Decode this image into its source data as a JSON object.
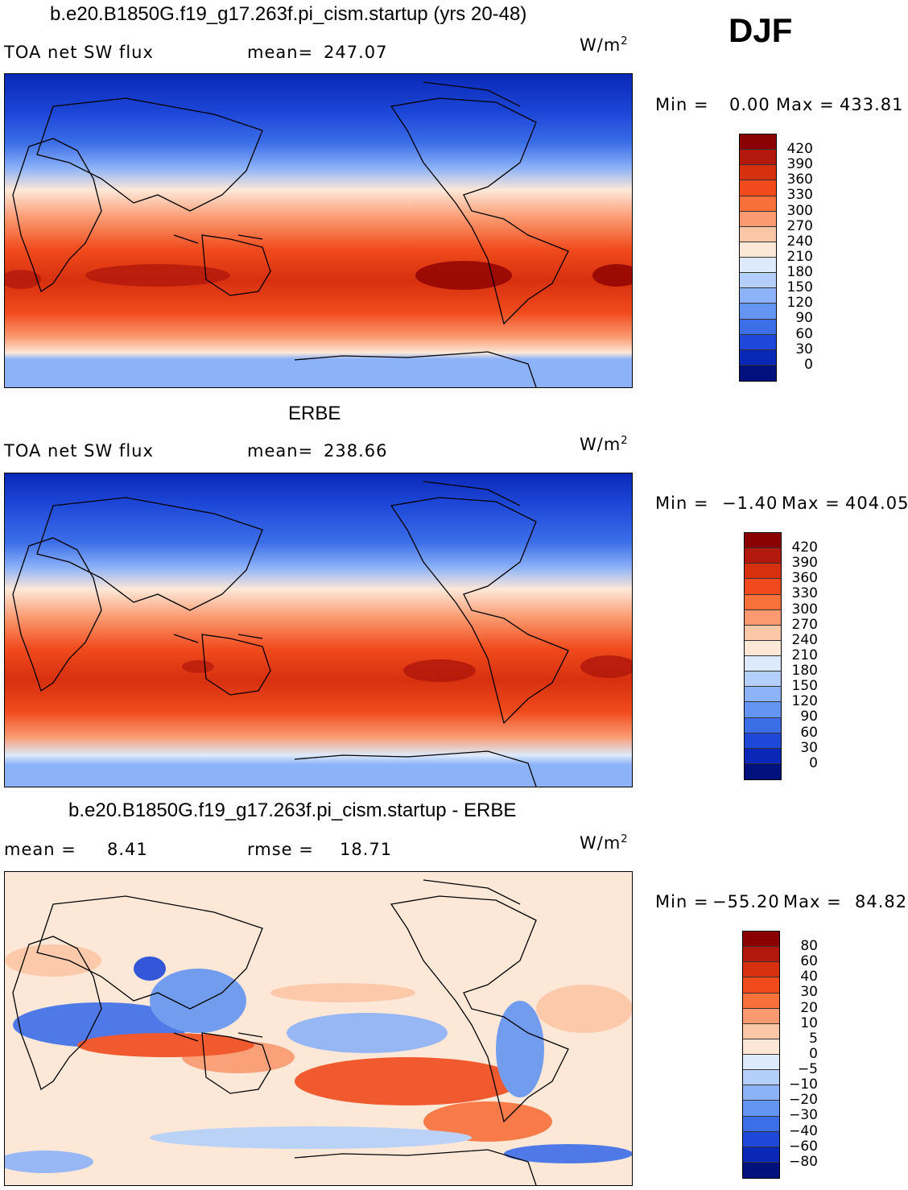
{
  "season": "DJF",
  "units_main": "W/m",
  "units_sup": "2",
  "panels": [
    {
      "title": "b.e20.B1850G.f19_g17.263f.pi_cism.startup (yrs 20-48)",
      "left_label": "TOA net SW flux",
      "stat_label": "mean=",
      "stat_value": "247.07",
      "minmax": {
        "min_label": "Min =",
        "min_value": "0.00",
        "max_label": "Max =",
        "max_value": "433.81"
      },
      "colorbar": {
        "ticks": [
          "420",
          "390",
          "360",
          "330",
          "300",
          "270",
          "240",
          "210",
          "180",
          "150",
          "120",
          "90",
          "60",
          "30",
          "0"
        ],
        "colors": [
          "#8b0000",
          "#b2180b",
          "#d7300f",
          "#f04a1d",
          "#f8703a",
          "#fb9a70",
          "#fcc7a6",
          "#fde8d8",
          "#dceafc",
          "#b4cffb",
          "#8cb2f8",
          "#6495f2",
          "#3c6ee8",
          "#1e48d8",
          "#0a28b8",
          "#00107c"
        ]
      }
    },
    {
      "title": "ERBE",
      "left_label": "TOA net SW flux",
      "stat_label": "mean=",
      "stat_value": "238.66",
      "minmax": {
        "min_label": "Min =",
        "min_value": "−1.40",
        "max_label": "Max =",
        "max_value": "404.05"
      },
      "colorbar": {
        "ticks": [
          "420",
          "390",
          "360",
          "330",
          "300",
          "270",
          "240",
          "210",
          "180",
          "150",
          "120",
          "90",
          "60",
          "30",
          "0"
        ],
        "colors": [
          "#8b0000",
          "#b2180b",
          "#d7300f",
          "#f04a1d",
          "#f8703a",
          "#fb9a70",
          "#fcc7a6",
          "#fde8d8",
          "#dceafc",
          "#b4cffb",
          "#8cb2f8",
          "#6495f2",
          "#3c6ee8",
          "#1e48d8",
          "#0a28b8",
          "#00107c"
        ]
      }
    },
    {
      "title": "b.e20.B1850G.f19_g17.263f.pi_cism.startup - ERBE",
      "left_label": "mean =",
      "left_value": "8.41",
      "stat_label": "rmse =",
      "stat_value": "18.71",
      "minmax": {
        "min_label": "Min =",
        "min_value": "−55.20",
        "max_label": "Max =",
        "max_value": "84.82"
      },
      "colorbar": {
        "ticks": [
          "80",
          "60",
          "40",
          "30",
          "20",
          "10",
          "5",
          "0",
          "−5",
          "−10",
          "−20",
          "−30",
          "−40",
          "−60",
          "−80"
        ],
        "colors": [
          "#8b0000",
          "#b2180b",
          "#d7300f",
          "#f04a1d",
          "#f8703a",
          "#fb9a70",
          "#fcc7a6",
          "#fde8d8",
          "#dceafc",
          "#b4cffb",
          "#8cb2f8",
          "#6495f2",
          "#3c6ee8",
          "#1e48d8",
          "#0a28b8",
          "#00107c"
        ]
      }
    }
  ]
}
